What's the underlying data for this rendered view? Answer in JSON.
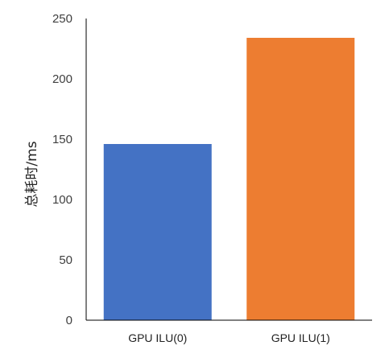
{
  "chart_data": {
    "type": "bar",
    "title": "",
    "xlabel": "",
    "ylabel": "总耗时/ms",
    "categories": [
      "GPU ILU(0)",
      "GPU ILU(1)"
    ],
    "values": [
      146,
      234
    ],
    "bar_colors": [
      "#4472C4",
      "#ED7D31"
    ],
    "ylim": [
      0,
      250
    ],
    "yticks": [
      0,
      50,
      100,
      150,
      200,
      250
    ],
    "grid": false,
    "legend": "none",
    "axis_color": "#000000"
  }
}
